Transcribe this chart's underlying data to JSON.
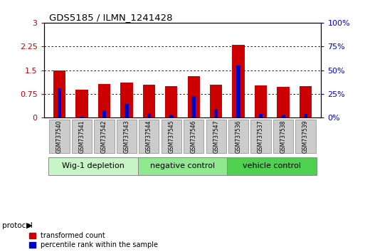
{
  "title": "GDS5185 / ILMN_1241428",
  "samples": [
    "GSM737540",
    "GSM737541",
    "GSM737542",
    "GSM737543",
    "GSM737544",
    "GSM737545",
    "GSM737546",
    "GSM737547",
    "GSM737536",
    "GSM737537",
    "GSM737538",
    "GSM737539"
  ],
  "red_values": [
    1.48,
    0.88,
    1.07,
    1.1,
    1.05,
    1.0,
    1.3,
    1.05,
    2.3,
    1.02,
    0.98,
    1.0
  ],
  "blue_values_abs": [
    0.93,
    0.03,
    0.22,
    0.42,
    0.13,
    0.1,
    0.68,
    0.27,
    1.65,
    0.12,
    0.1,
    0.12
  ],
  "groups": [
    {
      "label": "Wig-1 depletion",
      "start": 0,
      "end": 4,
      "color": "#c8f5c8"
    },
    {
      "label": "negative control",
      "start": 4,
      "end": 8,
      "color": "#90e890"
    },
    {
      "label": "vehicle control",
      "start": 8,
      "end": 12,
      "color": "#50d050"
    }
  ],
  "ylim_left": [
    0,
    3
  ],
  "ylim_right": [
    0,
    100
  ],
  "yticks_left": [
    0,
    0.75,
    1.5,
    2.25,
    3
  ],
  "yticks_right": [
    0,
    25,
    50,
    75,
    100
  ],
  "ytick_labels_left": [
    "0",
    "0.75",
    "1.5",
    "2.25",
    "3"
  ],
  "ytick_labels_right": [
    "0%",
    "25%",
    "50%",
    "75%",
    "100%"
  ],
  "red_color": "#cc0000",
  "blue_color": "#0000cc",
  "red_bar_width": 0.55,
  "blue_bar_width": 0.18,
  "legend_red": "transformed count",
  "legend_blue": "percentile rank within the sample",
  "protocol_label": "protocol",
  "background_color": "#ffffff",
  "tick_label_color_left": "#cc0000",
  "tick_label_color_right": "#0000cc",
  "sample_box_color": "#cccccc",
  "group_border_color": "#888888",
  "dotted_grid_vals": [
    0.75,
    1.5,
    2.25
  ]
}
